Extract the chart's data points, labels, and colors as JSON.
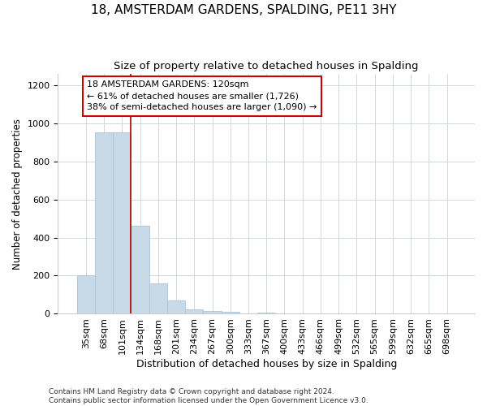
{
  "title": "18, AMSTERDAM GARDENS, SPALDING, PE11 3HY",
  "subtitle": "Size of property relative to detached houses in Spalding",
  "xlabel": "Distribution of detached houses by size in Spalding",
  "ylabel": "Number of detached properties",
  "bar_labels": [
    "35sqm",
    "68sqm",
    "101sqm",
    "134sqm",
    "168sqm",
    "201sqm",
    "234sqm",
    "267sqm",
    "300sqm",
    "333sqm",
    "367sqm",
    "400sqm",
    "433sqm",
    "466sqm",
    "499sqm",
    "532sqm",
    "565sqm",
    "599sqm",
    "632sqm",
    "665sqm",
    "698sqm"
  ],
  "bar_values": [
    200,
    950,
    950,
    460,
    160,
    70,
    22,
    15,
    10,
    0,
    8,
    0,
    0,
    0,
    0,
    0,
    0,
    0,
    0,
    0,
    0
  ],
  "bar_color": "#c8d9e8",
  "bar_edge_color": "#a8c4d8",
  "property_line_color": "#aa0000",
  "annotation_text": "18 AMSTERDAM GARDENS: 120sqm\n← 61% of detached houses are smaller (1,726)\n38% of semi-detached houses are larger (1,090) →",
  "annotation_box_color": "#ffffff",
  "annotation_box_edge": "#cc0000",
  "footnote1": "Contains HM Land Registry data © Crown copyright and database right 2024.",
  "footnote2": "Contains public sector information licensed under the Open Government Licence v3.0.",
  "ylim": [
    0,
    1260
  ],
  "yticks": [
    0,
    200,
    400,
    600,
    800,
    1000,
    1200
  ],
  "title_fontsize": 11,
  "subtitle_fontsize": 9.5,
  "xlabel_fontsize": 9,
  "ylabel_fontsize": 8.5,
  "tick_fontsize": 8,
  "annotation_fontsize": 8,
  "footnote_fontsize": 6.5
}
